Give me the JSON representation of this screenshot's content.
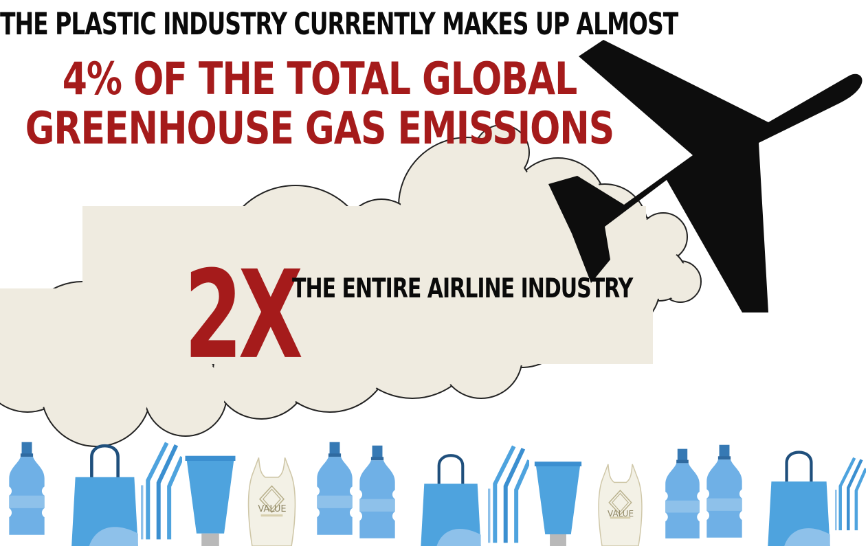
{
  "headline": {
    "line1": "THE PLASTIC INDUSTRY CURRENTLY MAKES UP ALMOST",
    "line2": "4% OF THE TOTAL GLOBAL",
    "line3": "GREENHOUSE GAS EMISSIONS"
  },
  "comparison": {
    "multiplier": "2X",
    "label": "THE ENTIRE AIRLINE INDUSTRY"
  },
  "plastic_items": [
    {
      "icon": "bottle-icon"
    },
    {
      "icon": "shopping-bag-icon"
    },
    {
      "icon": "straw-icon"
    },
    {
      "icon": "cup-icon"
    },
    {
      "icon": "plastic-bag-icon",
      "text": "VALUE"
    },
    {
      "icon": "bottle-icon"
    },
    {
      "icon": "bottle-icon"
    },
    {
      "icon": "shopping-bag-icon"
    },
    {
      "icon": "straw-icon"
    },
    {
      "icon": "cup-icon"
    },
    {
      "icon": "plastic-bag-icon",
      "text": "VALUE"
    },
    {
      "icon": "bottle-icon"
    },
    {
      "icon": "bottle-icon"
    },
    {
      "icon": "shopping-bag-icon"
    },
    {
      "icon": "straw-icon"
    }
  ],
  "colors": {
    "accent_red": "#a51b1b",
    "text_black": "#0a0a0a",
    "cloud": "#efebe0",
    "plastic_blue": "#4ea3de",
    "plastic_blue_light": "#8ec1ea",
    "plastic_blue_dark": "#3679b4"
  }
}
